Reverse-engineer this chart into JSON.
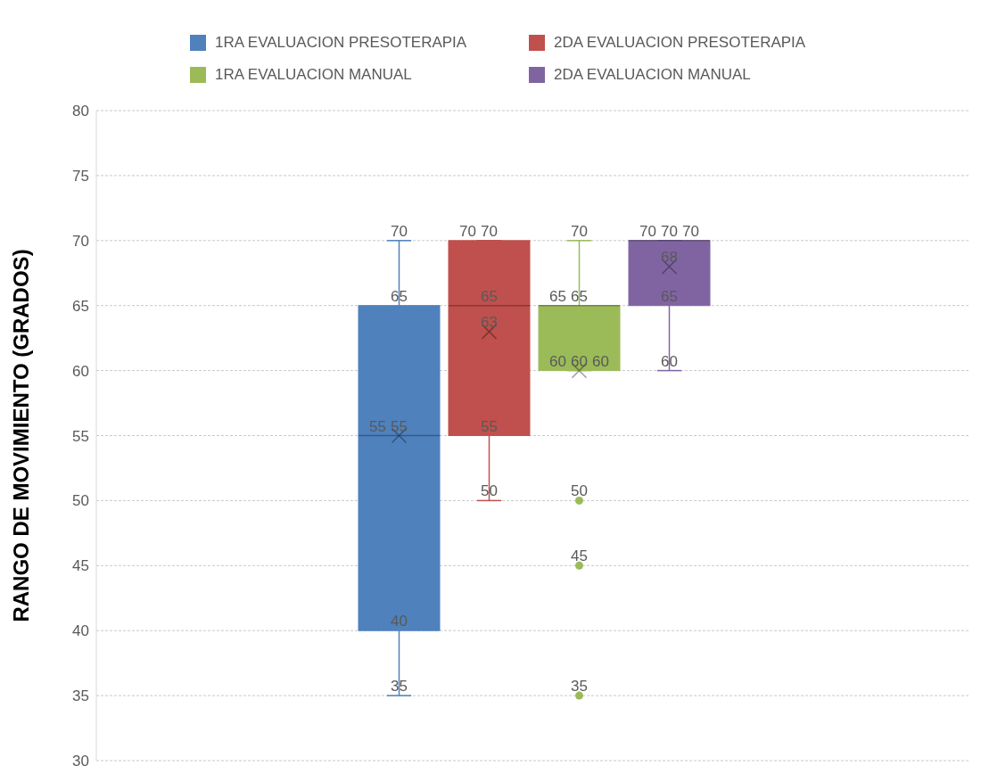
{
  "chart_data": {
    "type": "box",
    "ylabel": "RANGO DE MOVIMIENTO (GRADOS)",
    "categories": [
      null
    ],
    "ylim": [
      30,
      80
    ],
    "yticks": [
      30,
      35,
      40,
      45,
      50,
      55,
      60,
      65,
      70,
      75,
      80
    ],
    "grid": "y",
    "legend": "top",
    "series": [
      {
        "name": "1RA EVALUACION PRESOTERAPIA",
        "color": "#4f81bd",
        "boxes": [
          {
            "low": 35,
            "q1": 40,
            "median": 55,
            "q3": 65,
            "high": 70,
            "mean": 55
          }
        ]
      },
      {
        "name": "2DA EVALUACION PRESOTERAPIA",
        "color": "#c0504d",
        "boxes": [
          {
            "low": 50,
            "q1": 55,
            "median": 65,
            "q3": 70,
            "high": 70,
            "mean": 63
          }
        ]
      },
      {
        "name": "1RA EVALUACION MANUAL",
        "color": "#9bbb59",
        "boxes": [
          {
            "low": 60,
            "q1": 60,
            "median": 65,
            "q3": 65,
            "high": 70,
            "mean": 60,
            "outliers": [
              50,
              45,
              35
            ]
          }
        ]
      },
      {
        "name": "2DA EVALUACION MANUAL",
        "color": "#8064a2",
        "boxes": [
          {
            "low": 60,
            "q1": 65,
            "median": 70,
            "q3": 70,
            "high": 70,
            "mean": 68
          }
        ]
      }
    ],
    "annotations": [
      {
        "text": "70",
        "y": 70
      },
      {
        "text": "65",
        "y": 65
      },
      {
        "text": "55",
        "y": 55
      },
      {
        "text": "40",
        "y": 40
      },
      {
        "text": "35",
        "y": 35
      },
      "55",
      {
        "text": "70",
        "y": 70
      },
      {
        "text": "70",
        "y": 70
      },
      {
        "text": "65",
        "y": 65
      },
      {
        "text": "55",
        "y": 55
      },
      {
        "text": "50",
        "y": 50
      },
      "63",
      {
        "text": "70",
        "y": 70
      },
      {
        "text": "65",
        "y": 65
      },
      {
        "text": "65",
        "y": 65
      },
      {
        "text": "60",
        "y": 60
      },
      {
        "text": "60",
        "y": 60
      },
      "60",
      "50",
      "45",
      "35",
      {
        "text": "70",
        "y": 70
      },
      {
        "text": "70",
        "y": 70
      },
      {
        "text": "70",
        "y": 70
      },
      {
        "text": "65",
        "y": 65
      },
      {
        "text": "60",
        "y": 60
      },
      "68"
    ]
  }
}
